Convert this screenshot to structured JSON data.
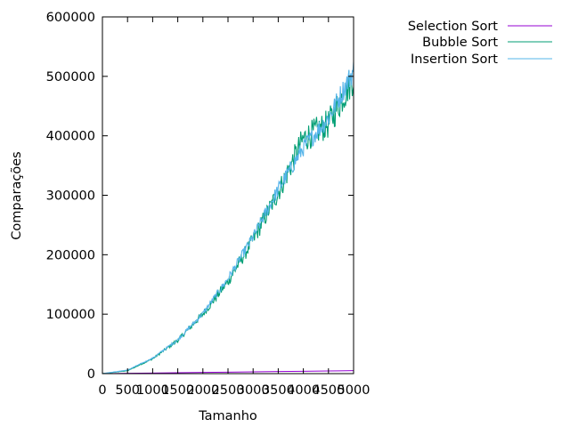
{
  "chart_data": {
    "type": "line",
    "title": "",
    "xlabel": "Tamanho",
    "ylabel": "Comparações",
    "xlim": [
      0,
      5000
    ],
    "ylim": [
      0,
      600000
    ],
    "grid": false,
    "legend_position": "top-right, outside plot",
    "x_ticks": [
      "0",
      "500",
      "1000",
      "1500",
      "2000",
      "2500",
      "3000",
      "3500",
      "4000",
      "4500",
      "5000"
    ],
    "y_ticks": [
      "0",
      "100000",
      "200000",
      "300000",
      "400000",
      "500000",
      "600000"
    ],
    "series": [
      {
        "name": "Selection Sort",
        "color": "#9400d3",
        "x": [
          0,
          500,
          1000,
          1500,
          2000,
          2500,
          3000,
          3500,
          4000,
          4500,
          5000
        ],
        "y": [
          0,
          500,
          1000,
          1500,
          2000,
          2500,
          3000,
          3500,
          4000,
          4500,
          5000
        ]
      },
      {
        "name": "Bubble Sort",
        "color": "#009e73",
        "x": [
          0,
          500,
          1000,
          1500,
          2000,
          2500,
          3000,
          3500,
          4000,
          4500,
          5000
        ],
        "y": [
          0,
          5000,
          25000,
          56000,
          100000,
          155000,
          225000,
          305000,
          395000,
          420000,
          500000
        ],
        "noise": 0.06
      },
      {
        "name": "Insertion Sort",
        "color": "#56b4e9",
        "x": [
          0,
          500,
          1000,
          1500,
          2000,
          2500,
          3000,
          3500,
          4000,
          4500,
          5000
        ],
        "y": [
          0,
          6000,
          26000,
          57000,
          101000,
          160000,
          230000,
          310000,
          380000,
          430000,
          510000
        ],
        "noise": 0.04
      }
    ]
  }
}
